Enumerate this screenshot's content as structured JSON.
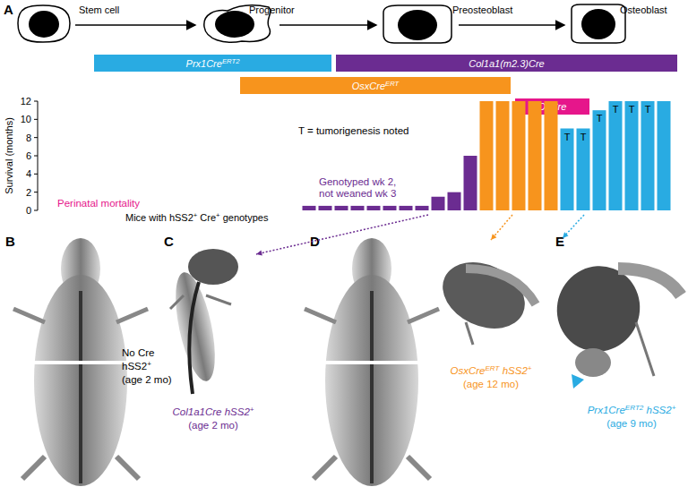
{
  "panel_labels": [
    "A",
    "B",
    "C",
    "D",
    "E"
  ],
  "cells": [
    {
      "label": "Stem cell"
    },
    {
      "label": "Progenitor"
    },
    {
      "label": "Preosteoblast"
    },
    {
      "label": "Osteoblast"
    }
  ],
  "cre_lines": [
    {
      "label": [
        {
          "t": "Prx1Cre"
        },
        {
          "t": "ERT2",
          "sup": true
        }
      ],
      "color": "#29abe2"
    },
    {
      "label": [
        {
          "t": "Col1a1(m2.3)Cre"
        }
      ],
      "color": "#6b2c91"
    },
    {
      "label": [
        {
          "t": "OsxCre"
        },
        {
          "t": "ERT",
          "sup": true
        }
      ],
      "color": "#f7941d"
    },
    {
      "label": [
        {
          "t": "OcCre"
        }
      ],
      "color": "#e6168b"
    }
  ],
  "chart_data": {
    "type": "bar",
    "y_label": "Survival (months)",
    "x_label": [
      {
        "t": "Mice with hSS2"
      },
      {
        "t": "+",
        "sup": true
      },
      {
        "t": " Cre"
      },
      {
        "t": "+",
        "sup": true
      },
      {
        "t": " genotypes"
      }
    ],
    "categories": [
      null,
      null,
      null,
      null,
      null,
      null,
      null,
      null,
      null,
      null,
      null,
      null,
      null,
      null,
      null,
      null,
      null,
      null,
      null,
      null,
      null,
      null,
      null,
      null,
      null,
      null,
      null,
      null,
      null,
      null,
      null,
      null,
      null,
      null,
      null,
      null,
      null,
      null,
      null
    ],
    "values": [
      0,
      0,
      0,
      0,
      0,
      0,
      0,
      0,
      0,
      0,
      0,
      0,
      0,
      0,
      0,
      0,
      0.5,
      0.5,
      0.5,
      0.5,
      0.5,
      0.5,
      0.5,
      0.5,
      1.5,
      2,
      6,
      12,
      12,
      12,
      12,
      12,
      9,
      9,
      11,
      12,
      12,
      12,
      12
    ],
    "colors": [
      "#e6168b",
      "#e6168b",
      "#e6168b",
      "#e6168b",
      "#e6168b",
      "#e6168b",
      "#e6168b",
      "#e6168b",
      "#e6168b",
      "#e6168b",
      "#e6168b",
      "#e6168b",
      "#e6168b",
      "#e6168b",
      "#e6168b",
      "#e6168b",
      "#6b2c91",
      "#6b2c91",
      "#6b2c91",
      "#6b2c91",
      "#6b2c91",
      "#6b2c91",
      "#6b2c91",
      "#6b2c91",
      "#6b2c91",
      "#6b2c91",
      "#6b2c91",
      "#f7941d",
      "#f7941d",
      "#f7941d",
      "#f7941d",
      "#f7941d",
      "#29abe2",
      "#29abe2",
      "#29abe2",
      "#29abe2",
      "#29abe2",
      "#29abe2",
      "#29abe2"
    ],
    "bar_annotations": [
      null,
      null,
      null,
      null,
      null,
      null,
      null,
      null,
      null,
      null,
      null,
      null,
      null,
      null,
      null,
      null,
      null,
      null,
      null,
      null,
      null,
      null,
      null,
      null,
      null,
      null,
      null,
      null,
      null,
      null,
      null,
      null,
      "T",
      "T",
      "T",
      "T",
      "T",
      "T",
      null
    ],
    "ylim": [
      0,
      12
    ],
    "yticks": [
      0,
      2,
      4,
      6,
      8,
      10,
      12
    ],
    "grid": false,
    "tick_labels": "y",
    "annotations": [
      {
        "text": [
          "T = tumorigenesis noted"
        ],
        "color": "#000000"
      },
      {
        "text": [
          "Perinatal mortality"
        ],
        "color": "#e6168b"
      },
      {
        "text": [
          "Genotyped wk 2,",
          "not weaned wk 3"
        ],
        "color": "#6b2c91"
      }
    ]
  },
  "panels": [
    {
      "letter": "B",
      "color": "#000000",
      "caption": [
        [
          {
            "t": "No Cre"
          }
        ],
        [
          {
            "t": "hSS2"
          },
          {
            "t": "+",
            "sup": true
          }
        ],
        [
          {
            "t": "(age 2 mo)"
          }
        ]
      ]
    },
    {
      "letter": "C",
      "color": "#6b2c91",
      "caption": [
        [
          {
            "t": "Col1a1Cre hSS2"
          },
          {
            "t": "+",
            "sup": true
          }
        ],
        [
          {
            "t": "(age 2 mo)"
          }
        ]
      ]
    },
    {
      "letter": "D",
      "color": "#f7941d",
      "caption": [
        [
          {
            "t": "OsxCre"
          },
          {
            "t": "ERT",
            "sup": true
          },
          {
            "t": " hSS2"
          },
          {
            "t": "+",
            "sup": true
          }
        ],
        [
          {
            "t": "(age 12 mo)"
          }
        ]
      ]
    },
    {
      "letter": "E",
      "color": "#29abe2",
      "caption": [
        [
          {
            "t": "Prx1Cre"
          },
          {
            "t": "ERT2",
            "sup": true
          },
          {
            "t": " hSS2"
          },
          {
            "t": "+",
            "sup": true
          }
        ],
        [
          {
            "t": "(age 9 mo)"
          }
        ]
      ]
    }
  ]
}
